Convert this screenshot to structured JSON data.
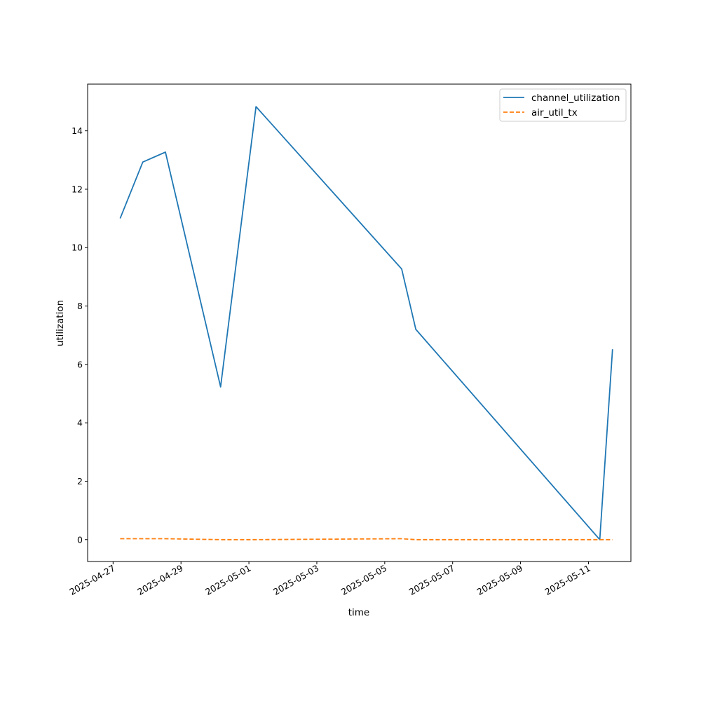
{
  "chart_data": {
    "type": "line",
    "title": "",
    "xlabel": "time",
    "ylabel": "utilization",
    "x_type": "datetime",
    "xlim": [
      "2025-04-26T06:00",
      "2025-05-12T06:00"
    ],
    "ylim": [
      -0.75,
      15.6
    ],
    "x_ticks": [
      "2025-04-27",
      "2025-04-29",
      "2025-05-01",
      "2025-05-03",
      "2025-05-05",
      "2025-05-07",
      "2025-05-09",
      "2025-05-11"
    ],
    "y_ticks": [
      0,
      2,
      4,
      6,
      8,
      10,
      12,
      14
    ],
    "grid": false,
    "legend_position": "top-right",
    "series": [
      {
        "name": "channel_utilization",
        "color": "#1f77b4",
        "dash": "solid",
        "points": [
          {
            "x": "2025-04-27T05:00",
            "y": 11.0
          },
          {
            "x": "2025-04-27T21:00",
            "y": 12.93
          },
          {
            "x": "2025-04-28T13:00",
            "y": 13.27
          },
          {
            "x": "2025-04-30T04:00",
            "y": 5.23
          },
          {
            "x": "2025-05-01T05:00",
            "y": 14.83
          },
          {
            "x": "2025-05-05T12:00",
            "y": 9.27
          },
          {
            "x": "2025-05-05T22:00",
            "y": 7.2
          },
          {
            "x": "2025-05-11T08:00",
            "y": 0.0
          },
          {
            "x": "2025-05-11T17:00",
            "y": 6.52
          }
        ]
      },
      {
        "name": "air_util_tx",
        "color": "#ff7f0e",
        "dash": "dashed",
        "points": [
          {
            "x": "2025-04-27T05:00",
            "y": 0.03
          },
          {
            "x": "2025-04-27T21:00",
            "y": 0.03
          },
          {
            "x": "2025-04-28T13:00",
            "y": 0.03
          },
          {
            "x": "2025-04-30T04:00",
            "y": 0.0
          },
          {
            "x": "2025-05-01T05:00",
            "y": 0.0
          },
          {
            "x": "2025-05-05T12:00",
            "y": 0.03
          },
          {
            "x": "2025-05-05T22:00",
            "y": 0.0
          },
          {
            "x": "2025-05-11T08:00",
            "y": 0.0
          },
          {
            "x": "2025-05-11T17:00",
            "y": 0.0
          }
        ]
      }
    ]
  }
}
